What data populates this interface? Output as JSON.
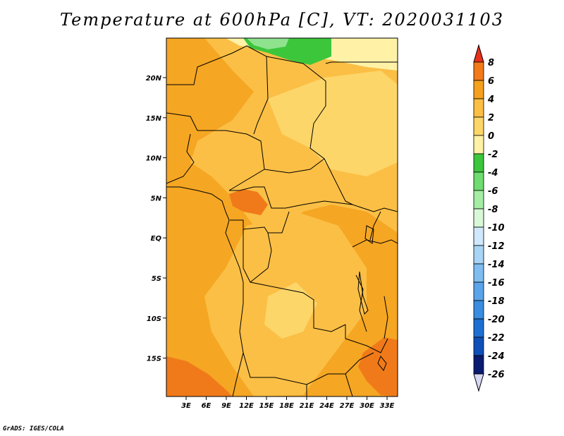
{
  "title": "Temperature at 600hPa [C], VT: 2020031103",
  "credit": "GrADS: IGES/COLA",
  "map": {
    "lat_labels": [
      "20N",
      "15N",
      "10N",
      "5N",
      "EQ",
      "5S",
      "10S",
      "15S"
    ],
    "lon_labels": [
      "3E",
      "6E",
      "9E",
      "12E",
      "15E",
      "18E",
      "21E",
      "24E",
      "27E",
      "30E",
      "33E"
    ],
    "colors": {
      "warm4": "#f5a623",
      "warm2": "#fbbf45",
      "warm0": "#fdd66a",
      "warm6": "#f07a1a",
      "cool_green": "#3cc63c",
      "light_green": "#8fe38f",
      "pale": "#fff2a6",
      "border": "#000000"
    }
  },
  "colorbar": {
    "labels": [
      "8",
      "6",
      "4",
      "2",
      "0",
      "-2",
      "-4",
      "-6",
      "-8",
      "-10",
      "-12",
      "-14",
      "-16",
      "-18",
      "-20",
      "-22",
      "-24",
      "-26"
    ],
    "top_color": "#e8301a",
    "bottom_color": "#d8d8f5",
    "colors": [
      "#f0501a",
      "#f27a1a",
      "#f5a01f",
      "#fbbf45",
      "#fdd66a",
      "#fff2a6",
      "#3cc63c",
      "#6fdc6f",
      "#a5eda5",
      "#d8f8d8",
      "#cfe8fb",
      "#a8d4f5",
      "#7fbdf0",
      "#5aa5ea",
      "#3a8de0",
      "#1e6fd2",
      "#0f4fb8",
      "#0a1a70"
    ]
  }
}
